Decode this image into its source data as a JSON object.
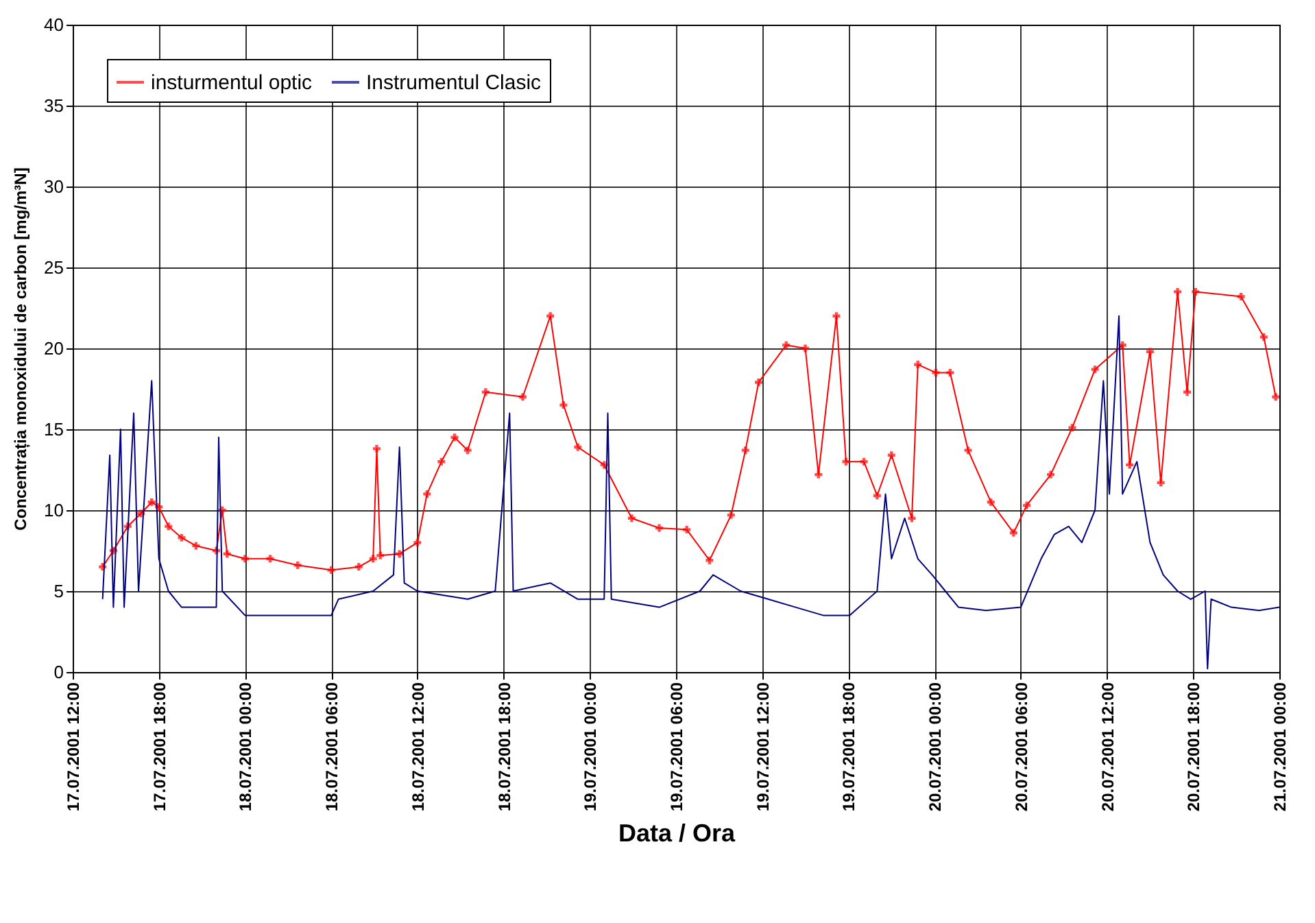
{
  "chart_data": {
    "type": "line",
    "xlabel": "Data / Ora",
    "ylabel": "Concentrația monoxidului de carbon [mg/m³N]",
    "xlim": [
      "2001-07-17T12:00",
      "2001-07-21T00:00"
    ],
    "xticks": [
      {
        "value": "2001-07-17T12:00",
        "label": "17.07.2001 12:00"
      },
      {
        "value": "2001-07-17T18:00",
        "label": "17.07.2001 18:00"
      },
      {
        "value": "2001-07-18T00:00",
        "label": "18.07.2001 00:00"
      },
      {
        "value": "2001-07-18T06:00",
        "label": "18.07.2001 06:00"
      },
      {
        "value": "2001-07-18T12:00",
        "label": "18.07.2001 12:00"
      },
      {
        "value": "2001-07-18T18:00",
        "label": "18.07.2001 18:00"
      },
      {
        "value": "2001-07-19T00:00",
        "label": "19.07.2001 00:00"
      },
      {
        "value": "2001-07-19T06:00",
        "label": "19.07.2001 06:00"
      },
      {
        "value": "2001-07-19T12:00",
        "label": "19.07.2001 12:00"
      },
      {
        "value": "2001-07-19T18:00",
        "label": "19.07.2001 18:00"
      },
      {
        "value": "2001-07-20T00:00",
        "label": "20.07.2001 00:00"
      },
      {
        "value": "2001-07-20T06:00",
        "label": "20.07.2001 06:00"
      },
      {
        "value": "2001-07-20T12:00",
        "label": "20.07.2001 12:00"
      },
      {
        "value": "2001-07-20T18:00",
        "label": "20.07.2001 18:00"
      },
      {
        "value": "2001-07-21T00:00",
        "label": "21.07.2001 00:00"
      }
    ],
    "ylim": [
      0,
      40
    ],
    "yticks": [
      0,
      5,
      10,
      15,
      20,
      25,
      30,
      35,
      40
    ],
    "grid": true,
    "legend": "top left",
    "series": [
      {
        "name": "insturmentul optic",
        "color": "#ff0000",
        "marker": "cross",
        "x": [
          "2001-07-17T14:05",
          "2001-07-17T14:50",
          "2001-07-17T15:50",
          "2001-07-17T16:45",
          "2001-07-17T17:30",
          "2001-07-17T18:00",
          "2001-07-17T18:40",
          "2001-07-17T19:35",
          "2001-07-17T20:35",
          "2001-07-17T22:00",
          "2001-07-17T22:25",
          "2001-07-17T22:45",
          "2001-07-18T00:00",
          "2001-07-18T01:45",
          "2001-07-18T03:40",
          "2001-07-18T06:00",
          "2001-07-18T07:55",
          "2001-07-18T08:55",
          "2001-07-18T09:10",
          "2001-07-18T09:25",
          "2001-07-18T10:45",
          "2001-07-18T12:00",
          "2001-07-18T12:40",
          "2001-07-18T13:40",
          "2001-07-18T14:35",
          "2001-07-18T15:30",
          "2001-07-18T16:45",
          "2001-07-18T19:20",
          "2001-07-18T21:15",
          "2001-07-18T22:10",
          "2001-07-18T23:10",
          "2001-07-19T01:00",
          "2001-07-19T02:55",
          "2001-07-19T04:50",
          "2001-07-19T06:45",
          "2001-07-19T08:20",
          "2001-07-19T09:50",
          "2001-07-19T10:50",
          "2001-07-19T11:45",
          "2001-07-19T13:40",
          "2001-07-19T15:00",
          "2001-07-19T15:55",
          "2001-07-19T17:10",
          "2001-07-19T17:50",
          "2001-07-19T19:05",
          "2001-07-19T20:00",
          "2001-07-19T21:00",
          "2001-07-19T22:25",
          "2001-07-19T22:50",
          "2001-07-20T00:05",
          "2001-07-20T01:05",
          "2001-07-20T02:20",
          "2001-07-20T03:55",
          "2001-07-20T05:30",
          "2001-07-20T06:25",
          "2001-07-20T08:05",
          "2001-07-20T09:35",
          "2001-07-20T11:10",
          "2001-07-20T13:05",
          "2001-07-20T13:35",
          "2001-07-20T15:00",
          "2001-07-20T15:45",
          "2001-07-20T16:55",
          "2001-07-20T17:35",
          "2001-07-20T18:10",
          "2001-07-20T21:20",
          "2001-07-20T22:55",
          "2001-07-20T23:45"
        ],
        "values": [
          6.5,
          7.5,
          9,
          9.8,
          10.5,
          10.2,
          9,
          8.3,
          7.8,
          7.5,
          10,
          7.3,
          7,
          7,
          6.6,
          6.3,
          6.5,
          7,
          13.8,
          7.2,
          7.3,
          8,
          11,
          13,
          14.5,
          13.7,
          17.3,
          17,
          22,
          16.5,
          13.9,
          12.8,
          9.5,
          8.9,
          8.8,
          6.9,
          9.7,
          13.7,
          17.9,
          20.2,
          20,
          12.2,
          22,
          13,
          13,
          10.9,
          13.4,
          9.5,
          19,
          18.5,
          18.5,
          13.7,
          10.5,
          8.6,
          10.3,
          12.2,
          15.1,
          18.7,
          20.2,
          12.8,
          19.8,
          11.7,
          23.5,
          17.3,
          23.5,
          23.2,
          20.7,
          17
        ]
      },
      {
        "name": "Instrumentul Clasic",
        "color": "#000080",
        "x": [
          "2001-07-17T14:05",
          "2001-07-17T14:35",
          "2001-07-17T14:50",
          "2001-07-17T15:20",
          "2001-07-17T15:35",
          "2001-07-17T16:15",
          "2001-07-17T16:35",
          "2001-07-17T17:30",
          "2001-07-17T18:00",
          "2001-07-17T18:40",
          "2001-07-17T19:35",
          "2001-07-17T22:00",
          "2001-07-17T22:10",
          "2001-07-17T22:25",
          "2001-07-18T00:00",
          "2001-07-18T03:10",
          "2001-07-18T06:00",
          "2001-07-18T06:30",
          "2001-07-18T08:55",
          "2001-07-18T10:20",
          "2001-07-18T10:45",
          "2001-07-18T11:05",
          "2001-07-18T12:00",
          "2001-07-18T15:30",
          "2001-07-18T17:25",
          "2001-07-18T18:25",
          "2001-07-18T18:40",
          "2001-07-18T21:15",
          "2001-07-18T23:10",
          "2001-07-19T01:00",
          "2001-07-19T01:15",
          "2001-07-19T01:30",
          "2001-07-19T04:50",
          "2001-07-19T07:40",
          "2001-07-19T08:35",
          "2001-07-19T10:30",
          "2001-07-19T12:25",
          "2001-07-19T14:20",
          "2001-07-19T16:15",
          "2001-07-19T18:05",
          "2001-07-19T20:00",
          "2001-07-19T20:35",
          "2001-07-19T21:00",
          "2001-07-19T21:55",
          "2001-07-19T22:50",
          "2001-07-19T23:50",
          "2001-07-20T00:45",
          "2001-07-20T01:40",
          "2001-07-20T03:35",
          "2001-07-20T06:00",
          "2001-07-20T07:25",
          "2001-07-20T08:20",
          "2001-07-20T09:20",
          "2001-07-20T10:15",
          "2001-07-20T11:10",
          "2001-07-20T11:45",
          "2001-07-20T12:10",
          "2001-07-20T12:50",
          "2001-07-20T13:05",
          "2001-07-20T14:05",
          "2001-07-20T15:00",
          "2001-07-20T15:55",
          "2001-07-20T16:55",
          "2001-07-20T17:50",
          "2001-07-20T18:50",
          "2001-07-20T19:00",
          "2001-07-20T19:15",
          "2001-07-20T20:40",
          "2001-07-20T22:35",
          "2001-07-21T00:00"
        ],
        "values": [
          4.5,
          13.4,
          4,
          15,
          4,
          16,
          5,
          18,
          7,
          5,
          4,
          4,
          14.5,
          5,
          3.5,
          3.5,
          3.5,
          4.5,
          5,
          6,
          13.9,
          5.5,
          5,
          4.5,
          5,
          16,
          5,
          5.5,
          4.5,
          4.5,
          16,
          4.5,
          4,
          5,
          6,
          5,
          4.5,
          4,
          3.5,
          3.5,
          5,
          11,
          7,
          9.5,
          7,
          6,
          5,
          4,
          3.8,
          4,
          7,
          8.5,
          9,
          8,
          10,
          18,
          11,
          22,
          11,
          13,
          8,
          6,
          5,
          4.5,
          5,
          0.2,
          4.5,
          4,
          3.8,
          4
        ]
      }
    ]
  }
}
